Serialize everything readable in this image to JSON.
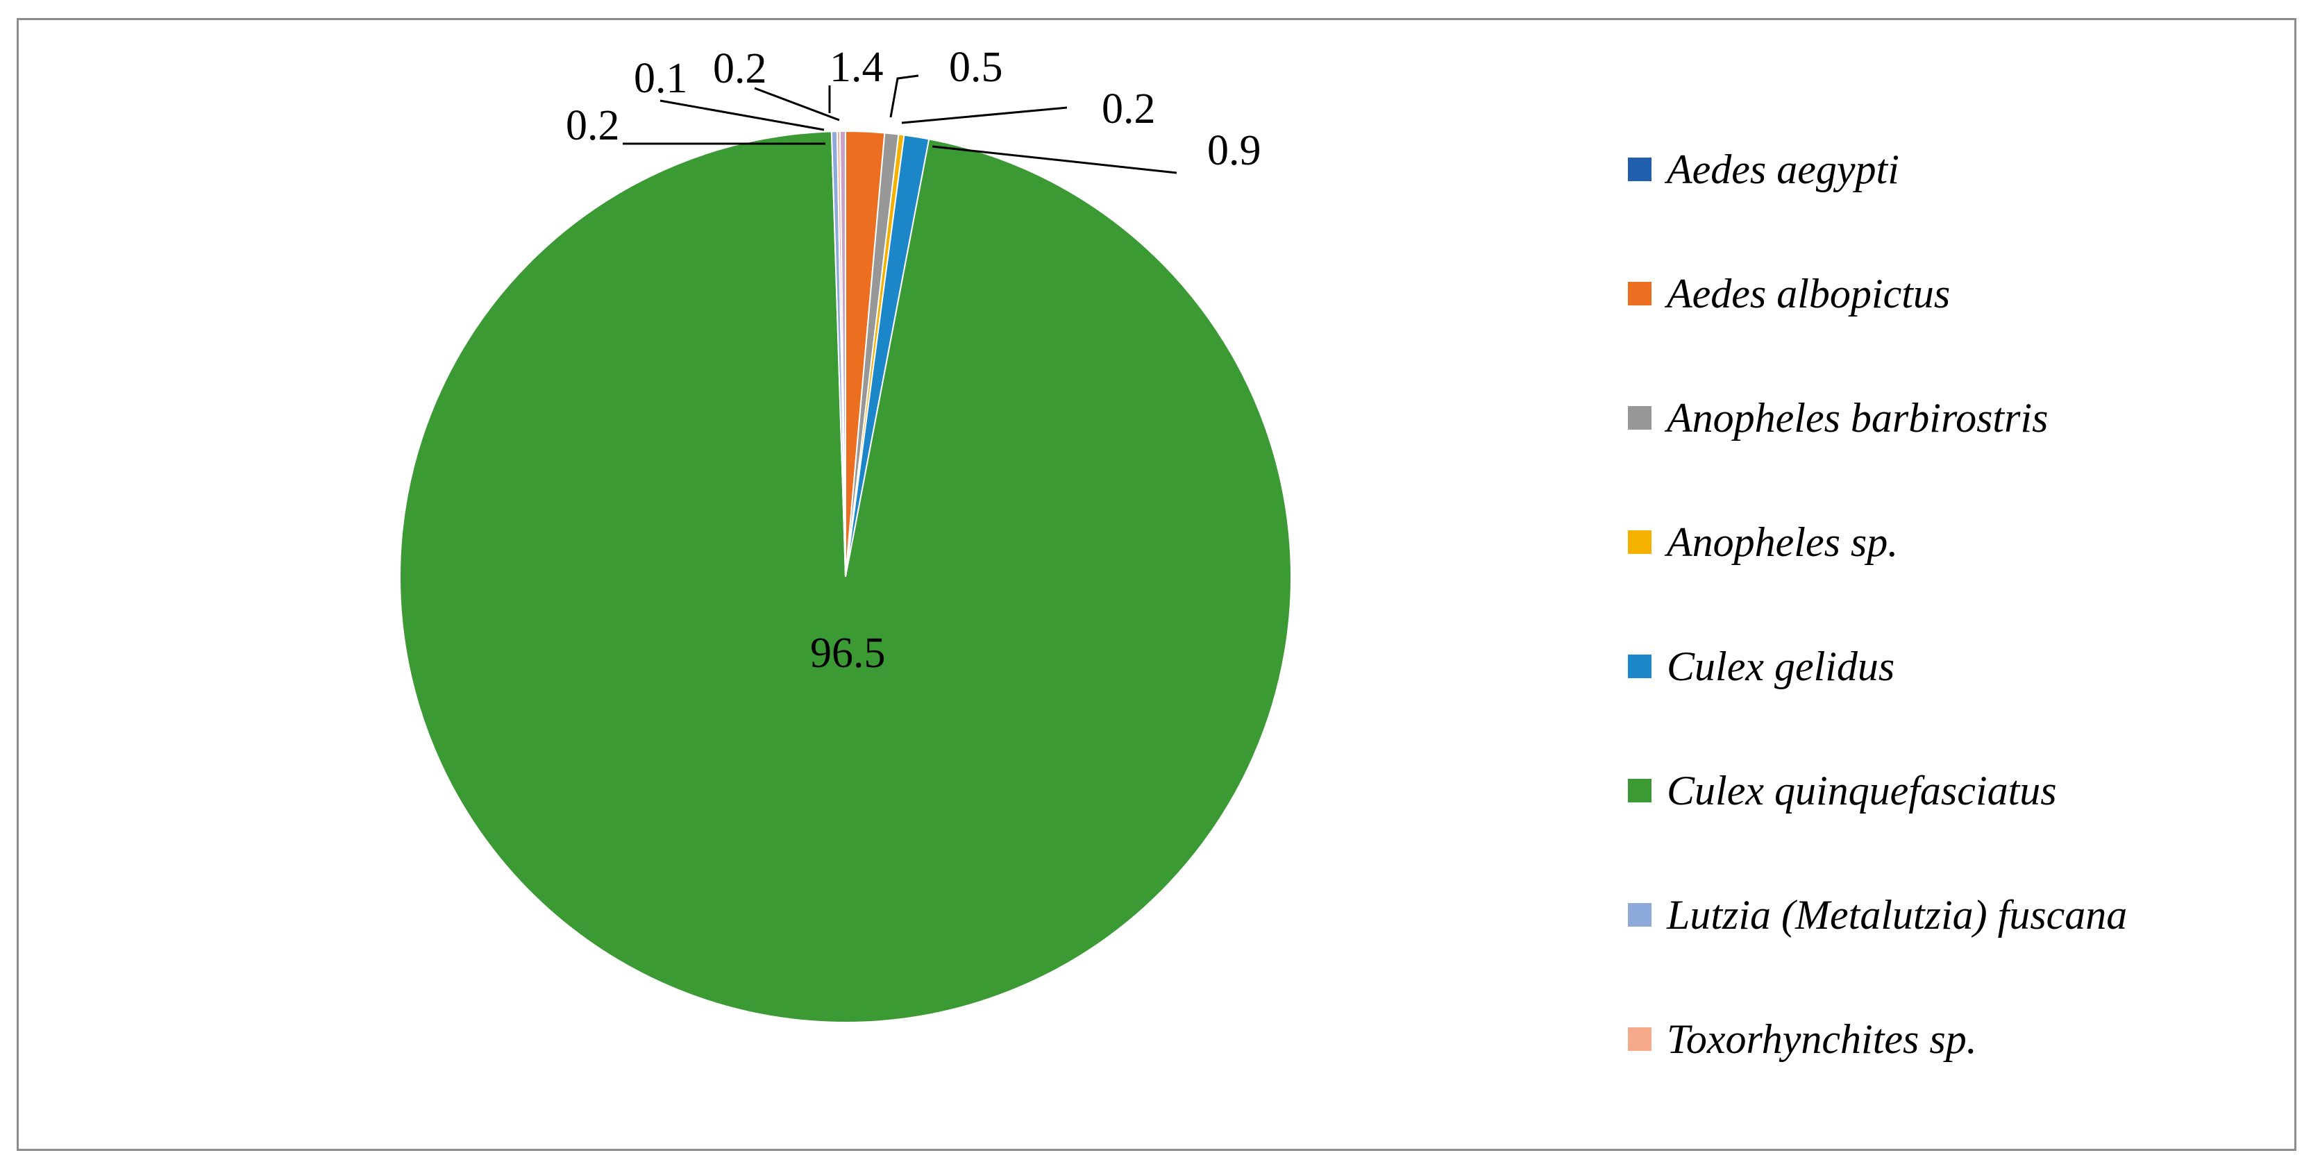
{
  "chart_data": {
    "type": "pie",
    "start_angle_deg": 0,
    "direction": "clockwise",
    "legend_position": "right",
    "slices": [
      {
        "name": "Aedes aegypti",
        "value": 0.0,
        "color": "#1f5fae",
        "label": ""
      },
      {
        "name": "Aedes albopictus",
        "value": 1.4,
        "color": "#ec6f21",
        "label": "1.4"
      },
      {
        "name": "Anopheles barbirostris",
        "value": 0.5,
        "color": "#979797",
        "label": "0.5"
      },
      {
        "name": "Anopheles sp.",
        "value": 0.2,
        "color": "#f5b100",
        "label": "0.2"
      },
      {
        "name": "Culex gelidus",
        "value": 0.9,
        "color": "#1b86c8",
        "label": "0.9"
      },
      {
        "name": "Culex quinquefasciatus",
        "value": 96.5,
        "color": "#3c9a34",
        "label": "96.5"
      },
      {
        "name": "Lutzia (Metalutzia) fuscana",
        "value": 0.2,
        "color": "#8eaadb",
        "label": "0.2"
      },
      {
        "name": "Toxorhynchites sp.",
        "value": 0.1,
        "color": "#f7a98b",
        "label": "0.1"
      },
      {
        "name": "",
        "value": 0.2,
        "color": "#c9a0c8",
        "label": "0.2"
      }
    ],
    "legend": [
      "Aedes aegypti",
      "Aedes albopictus",
      "Anopheles barbirostris",
      "Anopheles sp.",
      "Culex gelidus",
      "Culex quinquefasciatus",
      "Lutzia (Metalutzia) fuscana",
      "Toxorhynchites sp."
    ]
  }
}
